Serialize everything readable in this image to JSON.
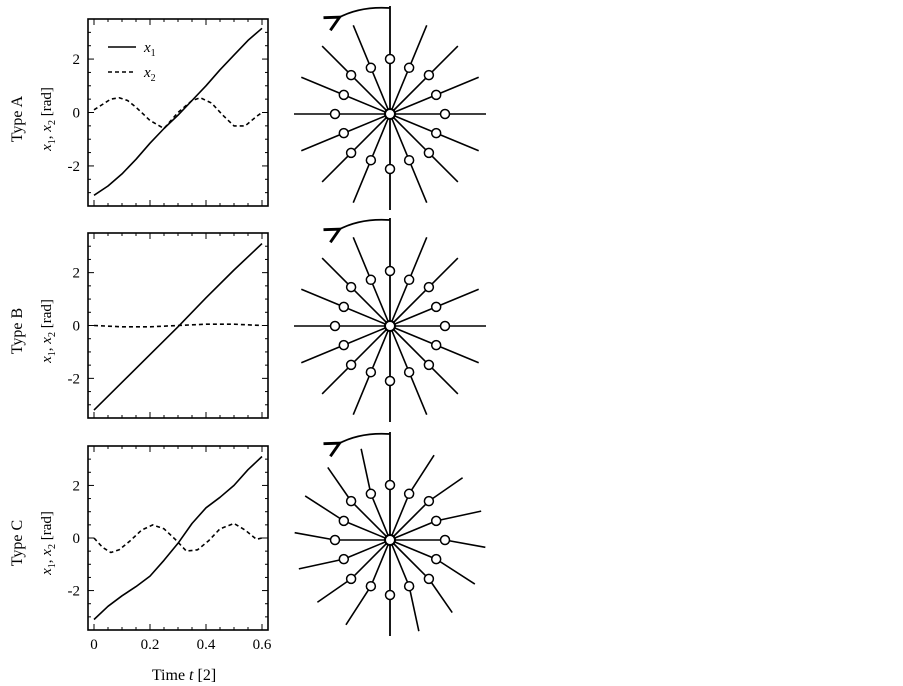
{
  "figure": {
    "xlabel_prefix": "Time ",
    "xlabel_var": "t",
    "xlabel_suffix": " [2]"
  },
  "ylabel_parts": {
    "x1_base": "x",
    "x1_sub": "1",
    "sep": ", ",
    "x2_base": "x",
    "x2_sub": "2",
    "unit": " [rad]"
  },
  "legend": {
    "x1_base": "x",
    "x1_sub": "1",
    "x2_base": "x",
    "x2_sub": "2"
  },
  "chart_data": [
    {
      "type": "line",
      "row_label": "Type A",
      "xlim": [
        0,
        0.6
      ],
      "ylim": [
        -3.5,
        3.5
      ],
      "x_ticks": [
        "0",
        "0.2",
        "0.4",
        "0.6"
      ],
      "x_tick_values": [
        0,
        0.2,
        0.4,
        0.6
      ],
      "y_ticks": [
        "2",
        "0",
        "-2"
      ],
      "y_tick_values": [
        2,
        0,
        -2
      ],
      "legend": true,
      "series": [
        {
          "name": "x1",
          "style": "solid",
          "x": [
            0,
            0.05,
            0.1,
            0.15,
            0.2,
            0.25,
            0.3,
            0.35,
            0.4,
            0.45,
            0.5,
            0.55,
            0.6
          ],
          "y": [
            -3.1,
            -2.75,
            -2.3,
            -1.75,
            -1.15,
            -0.6,
            -0.1,
            0.45,
            1.0,
            1.6,
            2.15,
            2.7,
            3.15
          ]
        },
        {
          "name": "x2",
          "style": "dashed",
          "x": [
            0,
            0.03,
            0.06,
            0.09,
            0.12,
            0.15,
            0.2,
            0.25,
            0.3,
            0.35,
            0.38,
            0.42,
            0.46,
            0.5,
            0.54,
            0.58,
            0.6
          ],
          "y": [
            0.1,
            0.3,
            0.5,
            0.55,
            0.45,
            0.2,
            -0.3,
            -0.6,
            0.0,
            0.45,
            0.55,
            0.35,
            -0.1,
            -0.5,
            -0.5,
            -0.15,
            0.0
          ]
        }
      ],
      "wheel": {
        "spokes": 16,
        "circles": "two concentric rings"
      }
    },
    {
      "type": "line",
      "row_label": "Type B",
      "xlim": [
        0,
        0.6
      ],
      "ylim": [
        -3.5,
        3.5
      ],
      "x_ticks": [
        "0",
        "0.2",
        "0.4",
        "0.6"
      ],
      "x_tick_values": [
        0,
        0.2,
        0.4,
        0.6
      ],
      "y_ticks": [
        "2",
        "0",
        "-2"
      ],
      "y_tick_values": [
        2,
        0,
        -2
      ],
      "legend": false,
      "series": [
        {
          "name": "x1",
          "style": "solid",
          "x": [
            0,
            0.1,
            0.2,
            0.3,
            0.4,
            0.5,
            0.6
          ],
          "y": [
            -3.2,
            -2.15,
            -1.1,
            -0.05,
            1.05,
            2.1,
            3.1
          ]
        },
        {
          "name": "x2",
          "style": "dashed",
          "x": [
            0,
            0.1,
            0.2,
            0.3,
            0.4,
            0.5,
            0.6
          ],
          "y": [
            0.0,
            -0.05,
            -0.05,
            0.0,
            0.05,
            0.05,
            0.0
          ]
        }
      ],
      "wheel": {
        "spokes": 16,
        "circles": "two concentric rings"
      }
    },
    {
      "type": "line",
      "row_label": "Type C",
      "xlim": [
        0,
        0.6
      ],
      "ylim": [
        -3.5,
        3.5
      ],
      "x_ticks": [
        "0",
        "0.2",
        "0.4",
        "0.6"
      ],
      "x_tick_values": [
        0,
        0.2,
        0.4,
        0.6
      ],
      "y_ticks": [
        "2",
        "0",
        "-2"
      ],
      "y_tick_values": [
        2,
        0,
        -2
      ],
      "legend": false,
      "series": [
        {
          "name": "x1",
          "style": "solid",
          "x": [
            0,
            0.05,
            0.1,
            0.15,
            0.2,
            0.25,
            0.3,
            0.35,
            0.4,
            0.45,
            0.5,
            0.55,
            0.6
          ],
          "y": [
            -3.1,
            -2.6,
            -2.2,
            -1.85,
            -1.45,
            -0.85,
            -0.2,
            0.55,
            1.15,
            1.55,
            2.0,
            2.6,
            3.1
          ]
        },
        {
          "name": "x2",
          "style": "dashed",
          "x": [
            0,
            0.03,
            0.06,
            0.09,
            0.13,
            0.17,
            0.21,
            0.25,
            0.29,
            0.33,
            0.37,
            0.41,
            0.45,
            0.5,
            0.54,
            0.58,
            0.6
          ],
          "y": [
            0.0,
            -0.35,
            -0.55,
            -0.45,
            -0.1,
            0.3,
            0.5,
            0.35,
            -0.05,
            -0.5,
            -0.45,
            -0.1,
            0.35,
            0.55,
            0.3,
            -0.05,
            0.0
          ]
        }
      ],
      "wheel": {
        "spokes": 16,
        "circles": "two rings, bent spokes"
      }
    }
  ]
}
